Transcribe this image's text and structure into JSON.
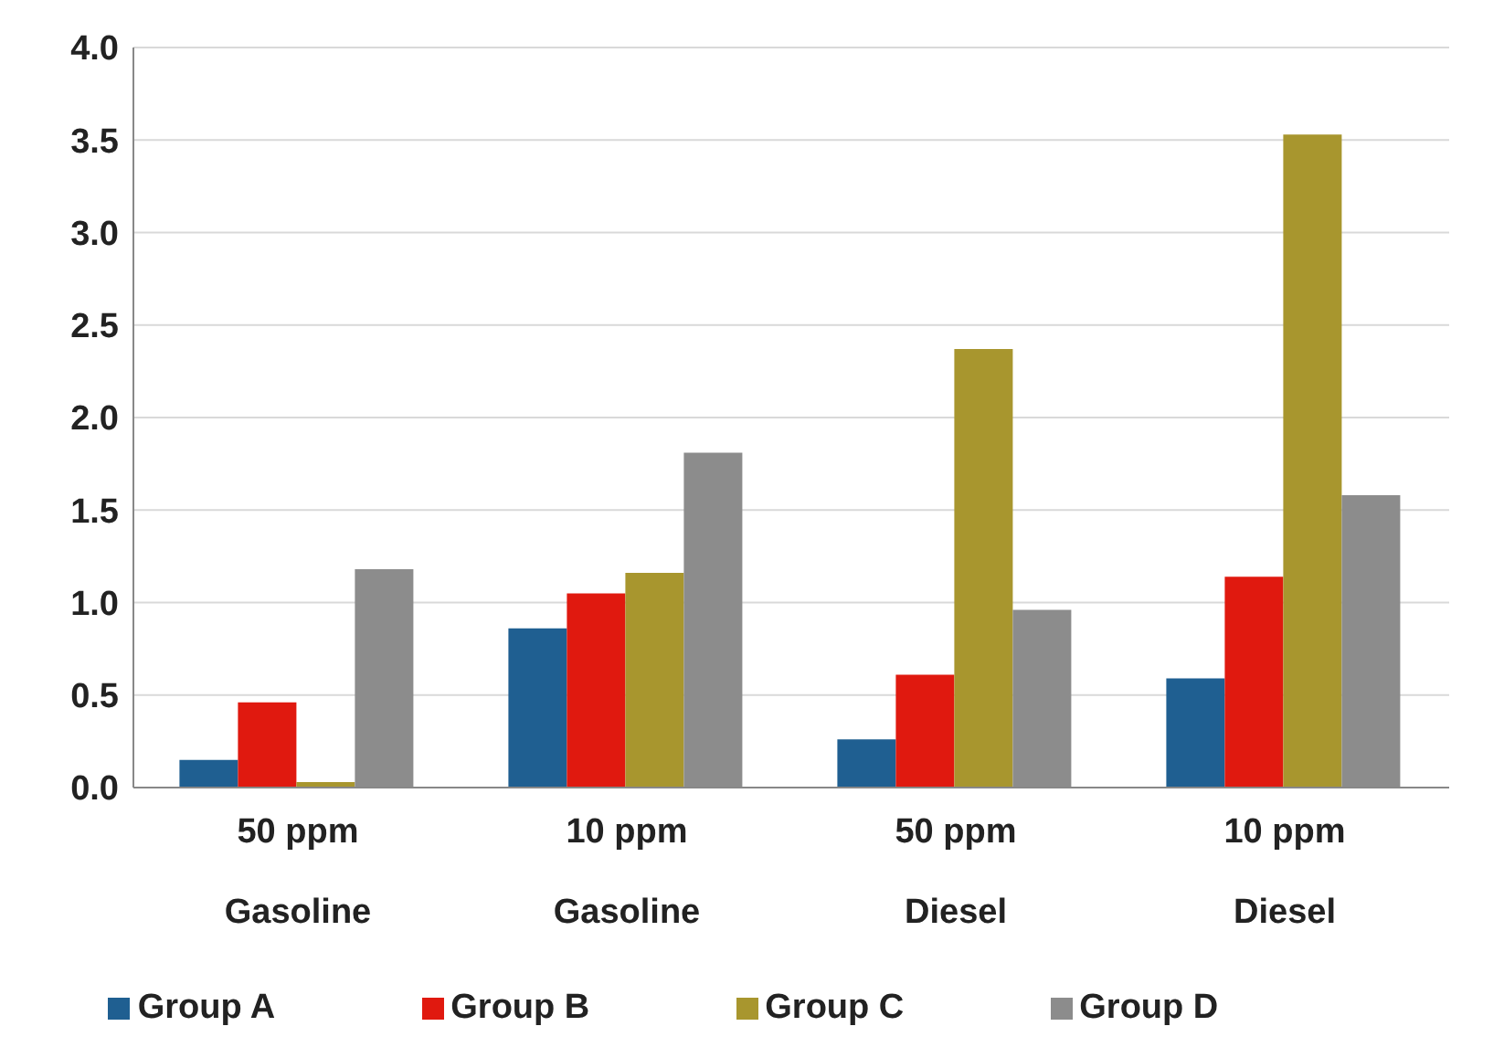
{
  "chart_data": {
    "type": "bar",
    "categories": [
      "50 ppm\nGasoline",
      "10 ppm\nGasoline",
      "50 ppm\nDiesel",
      "10 ppm\nDiesel"
    ],
    "series": [
      {
        "name": "Group A",
        "color": "#1f5f91",
        "values": [
          0.15,
          0.86,
          0.26,
          0.59
        ]
      },
      {
        "name": "Group B",
        "color": "#e0190f",
        "values": [
          0.46,
          1.05,
          0.61,
          1.14
        ]
      },
      {
        "name": "Group C",
        "color": "#a8962e",
        "values": [
          0.03,
          1.16,
          2.37,
          3.53
        ]
      },
      {
        "name": "Group D",
        "color": "#8c8c8c",
        "values": [
          1.18,
          1.81,
          0.96,
          1.58
        ]
      }
    ],
    "ylim": [
      0,
      4
    ],
    "yticks": [
      {
        "value": 0,
        "label": "0.0"
      },
      {
        "value": 0.5,
        "label": "0.5"
      },
      {
        "value": 1,
        "label": "1.0"
      },
      {
        "value": 1.5,
        "label": "1.5"
      },
      {
        "value": 2,
        "label": "2.0"
      },
      {
        "value": 2.5,
        "label": "2.5"
      },
      {
        "value": 3,
        "label": "3.0"
      },
      {
        "value": 3.5,
        "label": "3.5"
      },
      {
        "value": 4,
        "label": "4.0"
      }
    ],
    "grid": "y",
    "legend": "bottom"
  }
}
